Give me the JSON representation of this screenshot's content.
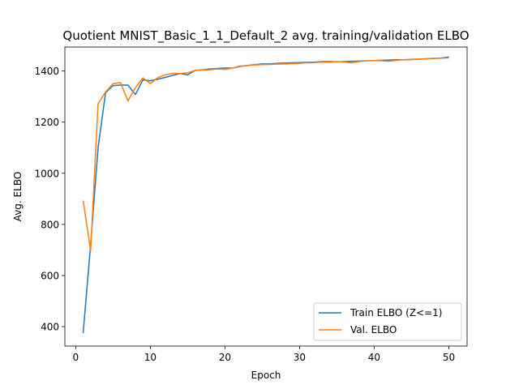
{
  "chart_data": {
    "type": "line",
    "title": "Quotient MNIST_Basic_1_1_Default_2 avg. training/validation ELBO",
    "xlabel": "Epoch",
    "ylabel": "Avg. ELBO",
    "xlim": [
      -1.45,
      52.45
    ],
    "ylim": [
      324,
      1494
    ],
    "xticks": [
      0,
      10,
      20,
      30,
      40,
      50
    ],
    "yticks": [
      400,
      600,
      800,
      1000,
      1200,
      1400
    ],
    "grid": false,
    "legend_position": "lower-right",
    "x": [
      1,
      2,
      3,
      4,
      5,
      6,
      7,
      8,
      9,
      10,
      11,
      12,
      13,
      14,
      15,
      16,
      17,
      18,
      19,
      20,
      21,
      22,
      23,
      24,
      25,
      26,
      27,
      28,
      29,
      30,
      31,
      32,
      33,
      34,
      35,
      36,
      37,
      38,
      39,
      40,
      41,
      42,
      43,
      44,
      45,
      46,
      47,
      48,
      49,
      50
    ],
    "series": [
      {
        "name": "Train ELBO (Z<=1)",
        "color": "#1f77b4",
        "values": [
          375,
          720,
          1100,
          1315,
          1343,
          1345,
          1345,
          1308,
          1365,
          1362,
          1368,
          1375,
          1383,
          1390,
          1385,
          1402,
          1405,
          1408,
          1410,
          1412,
          1411,
          1418,
          1422,
          1425,
          1428,
          1428,
          1430,
          1431,
          1432,
          1433,
          1434,
          1435,
          1437,
          1437,
          1436,
          1437,
          1438,
          1439,
          1440,
          1441,
          1442,
          1443,
          1444,
          1444,
          1445,
          1446,
          1448,
          1449,
          1451,
          1455
        ]
      },
      {
        "name": "Val. ELBO",
        "color": "#ff7f0e",
        "values": [
          893,
          697,
          1272,
          1318,
          1350,
          1355,
          1283,
          1335,
          1373,
          1351,
          1374,
          1385,
          1391,
          1390,
          1393,
          1402,
          1404,
          1405,
          1408,
          1406,
          1411,
          1420,
          1421,
          1424,
          1425,
          1426,
          1427,
          1428,
          1429,
          1430,
          1432,
          1433,
          1435,
          1434,
          1437,
          1435,
          1432,
          1437,
          1440,
          1441,
          1440,
          1438,
          1442,
          1444,
          1446,
          1447,
          1448,
          1450,
          1450,
          1451
        ]
      }
    ]
  }
}
